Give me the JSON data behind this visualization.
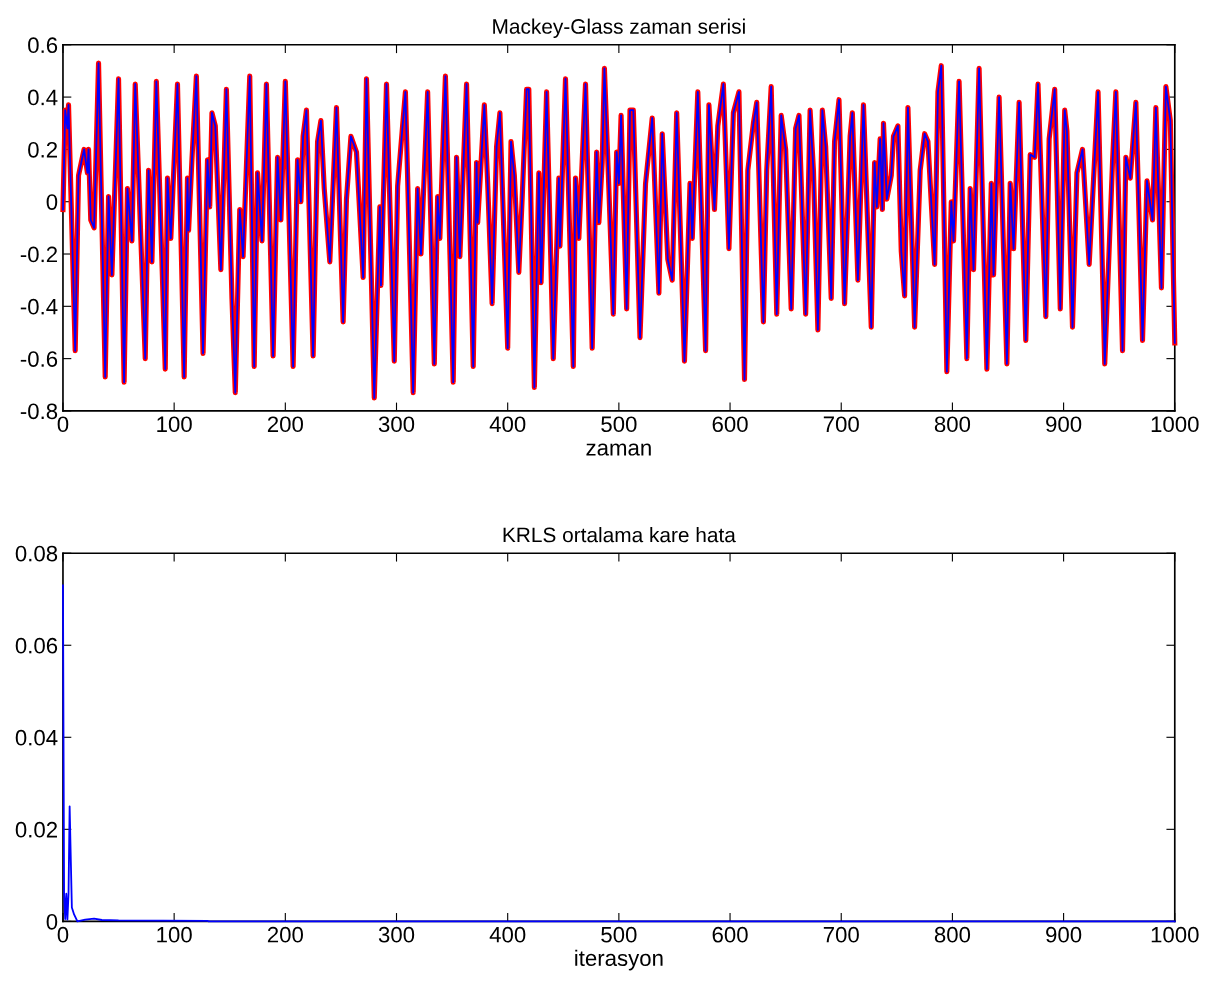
{
  "chart_data": [
    {
      "type": "line",
      "title": "Mackey-Glass zaman serisi",
      "xlabel": "zaman",
      "xlim": [
        0,
        1000
      ],
      "xticks": [
        0,
        100,
        200,
        300,
        400,
        500,
        600,
        700,
        800,
        900,
        1000
      ],
      "ylim": [
        -0.8,
        0.6
      ],
      "yticks": [
        {
          "value": -0.8,
          "label": "-0.8"
        },
        {
          "value": -0.6,
          "label": "-0.6"
        },
        {
          "value": -0.4,
          "label": "-0.4"
        },
        {
          "value": -0.2,
          "label": "-0.2"
        },
        0,
        0.2,
        0.4,
        0.6
      ],
      "marker": "none",
      "line_style": "solid",
      "x": [
        0,
        2,
        4,
        5,
        11,
        14,
        19,
        22,
        23,
        25,
        28,
        32,
        38,
        41,
        44,
        50,
        55,
        58,
        62,
        65,
        74,
        77,
        80,
        84,
        92,
        94,
        97,
        103,
        109,
        112,
        113,
        116,
        120,
        126,
        130,
        132,
        134,
        137,
        142,
        147,
        152,
        155,
        159,
        162,
        168,
        172,
        175,
        179,
        183,
        189,
        193,
        196,
        200,
        207,
        211,
        214,
        216,
        219,
        225,
        229,
        232,
        235,
        240,
        246,
        252,
        255,
        259,
        264,
        270,
        273,
        280,
        285,
        286,
        291,
        298,
        301,
        308,
        315,
        319,
        322,
        328,
        334,
        337,
        339,
        342,
        344,
        351,
        354,
        357,
        363,
        369,
        372,
        373,
        379,
        382,
        386,
        390,
        393,
        400,
        403,
        406,
        410,
        413,
        417,
        419,
        424,
        428,
        430,
        435,
        441,
        446,
        447,
        452,
        459,
        461,
        464,
        470,
        476,
        480,
        482,
        485,
        487,
        491,
        495,
        498,
        500,
        502,
        507,
        510,
        513,
        519,
        524,
        530,
        536,
        539,
        544,
        548,
        552,
        559,
        564,
        566,
        571,
        578,
        581,
        586,
        589,
        594,
        599,
        603,
        608,
        613,
        616,
        621,
        624,
        630,
        633,
        637,
        642,
        646,
        650,
        655,
        659,
        662,
        668,
        672,
        675,
        679,
        683,
        686,
        691,
        694,
        698,
        703,
        708,
        710,
        715,
        720,
        727,
        730,
        732,
        735,
        737,
        738,
        741,
        745,
        747,
        751,
        754,
        757,
        760,
        766,
        771,
        775,
        778,
        784,
        787,
        790,
        795,
        799,
        801,
        806,
        813,
        816,
        819,
        824,
        831,
        835,
        837,
        842,
        849,
        852,
        855,
        860,
        866,
        870,
        874,
        877,
        884,
        887,
        892,
        897,
        901,
        903,
        908,
        912,
        917,
        923,
        931,
        937,
        944,
        947,
        953,
        956,
        960,
        965,
        971,
        975,
        980,
        983,
        988,
        992,
        996,
        1000
      ],
      "series": [
        {
          "color": "#ff0000",
          "values": [
            -0.03,
            0.35,
            0.28,
            0.37,
            -0.57,
            0.1,
            0.2,
            0.11,
            0.2,
            -0.07,
            -0.1,
            0.53,
            -0.67,
            0.02,
            -0.28,
            0.47,
            -0.69,
            0.05,
            -0.15,
            0.45,
            -0.6,
            0.12,
            -0.23,
            0.46,
            -0.64,
            0.09,
            -0.14,
            0.45,
            -0.67,
            0.09,
            -0.11,
            0.16,
            0.48,
            -0.58,
            0.16,
            -0.02,
            0.34,
            0.29,
            -0.26,
            0.43,
            -0.37,
            -0.73,
            -0.03,
            -0.21,
            0.48,
            -0.63,
            0.11,
            -0.15,
            0.45,
            -0.59,
            0.17,
            -0.07,
            0.46,
            -0.63,
            0.16,
            0,
            0.25,
            0.35,
            -0.59,
            0.23,
            0.31,
            0.05,
            -0.23,
            0.36,
            -0.46,
            0.01,
            0.25,
            0.19,
            -0.29,
            0.47,
            -0.75,
            -0.02,
            -0.32,
            0.45,
            -0.61,
            0.06,
            0.42,
            -0.73,
            0.05,
            -0.2,
            0.42,
            -0.62,
            0.02,
            -0.14,
            0.25,
            0.48,
            -0.69,
            0.17,
            -0.21,
            0.45,
            -0.63,
            0.15,
            -0.08,
            0.37,
            0.07,
            -0.39,
            0.21,
            0.34,
            -0.56,
            0.23,
            0.1,
            -0.27,
            0.01,
            0.43,
            0.43,
            -0.71,
            0.11,
            -0.31,
            0.42,
            -0.6,
            0.09,
            -0.17,
            0.47,
            -0.63,
            0.09,
            -0.14,
            0.45,
            -0.56,
            0.19,
            -0.08,
            0.15,
            0.51,
            0.05,
            -0.43,
            0.19,
            0.07,
            0.33,
            -0.41,
            0.35,
            0.35,
            -0.52,
            0.07,
            0.32,
            -0.35,
            0.26,
            -0.22,
            -0.3,
            0.34,
            -0.61,
            0.07,
            -0.14,
            0.42,
            -0.57,
            0.37,
            -0.03,
            0.29,
            0.45,
            -0.18,
            0.34,
            0.42,
            -0.68,
            0.12,
            0.3,
            0.38,
            -0.46,
            0.12,
            0.44,
            -0.43,
            0.33,
            0.2,
            -0.41,
            0.28,
            0.33,
            -0.43,
            0.35,
            0.12,
            -0.49,
            0.35,
            0.21,
            -0.37,
            0.23,
            0.39,
            -0.39,
            0.25,
            0.34,
            -0.3,
            0.37,
            -0.48,
            0.15,
            -0.02,
            0.24,
            -0.03,
            0.3,
            0.01,
            0.1,
            0.25,
            0.29,
            -0.19,
            -0.36,
            0.36,
            -0.48,
            0.12,
            0.26,
            0.23,
            -0.24,
            0.42,
            0.52,
            -0.65,
            0,
            -0.15,
            0.46,
            -0.6,
            0.05,
            -0.26,
            0.51,
            -0.64,
            0.07,
            -0.28,
            0.4,
            -0.62,
            0.07,
            -0.18,
            0.38,
            -0.53,
            0.18,
            0.17,
            0.45,
            -0.44,
            0.24,
            0.43,
            -0.41,
            0.35,
            0.27,
            -0.48,
            0.11,
            0.2,
            -0.24,
            0.42,
            -0.62,
            0.15,
            0.42,
            -0.57,
            0.17,
            0.09,
            0.38,
            -0.53,
            0.08,
            -0.07,
            0.36,
            -0.33,
            0.44,
            0.31,
            -0.54
          ]
        },
        {
          "color": "#0000ff",
          "values": [
            -0.03,
            0.35,
            0.28,
            0.37,
            -0.57,
            0.1,
            0.2,
            0.11,
            0.2,
            -0.07,
            -0.1,
            0.53,
            -0.67,
            0.02,
            -0.28,
            0.47,
            -0.69,
            0.05,
            -0.15,
            0.45,
            -0.6,
            0.12,
            -0.23,
            0.46,
            -0.64,
            0.09,
            -0.14,
            0.45,
            -0.67,
            0.09,
            -0.11,
            0.16,
            0.48,
            -0.58,
            0.16,
            -0.02,
            0.34,
            0.29,
            -0.26,
            0.43,
            -0.37,
            -0.73,
            -0.03,
            -0.21,
            0.48,
            -0.63,
            0.11,
            -0.15,
            0.45,
            -0.59,
            0.17,
            -0.07,
            0.46,
            -0.63,
            0.16,
            0,
            0.25,
            0.35,
            -0.59,
            0.23,
            0.31,
            0.05,
            -0.23,
            0.36,
            -0.46,
            0.01,
            0.25,
            0.19,
            -0.29,
            0.47,
            -0.75,
            -0.02,
            -0.32,
            0.45,
            -0.61,
            0.06,
            0.42,
            -0.73,
            0.05,
            -0.2,
            0.42,
            -0.62,
            0.02,
            -0.14,
            0.25,
            0.48,
            -0.69,
            0.17,
            -0.21,
            0.45,
            -0.63,
            0.15,
            -0.08,
            0.37,
            0.07,
            -0.39,
            0.21,
            0.34,
            -0.56,
            0.23,
            0.1,
            -0.27,
            0.01,
            0.43,
            0.43,
            -0.71,
            0.11,
            -0.31,
            0.42,
            -0.6,
            0.09,
            -0.17,
            0.47,
            -0.63,
            0.09,
            -0.14,
            0.45,
            -0.56,
            0.19,
            -0.08,
            0.15,
            0.51,
            0.05,
            -0.43,
            0.19,
            0.07,
            0.33,
            -0.41,
            0.35,
            0.35,
            -0.52,
            0.07,
            0.32,
            -0.35,
            0.26,
            -0.22,
            -0.3,
            0.34,
            -0.61,
            0.07,
            -0.14,
            0.42,
            -0.57,
            0.37,
            -0.03,
            0.29,
            0.45,
            -0.18,
            0.34,
            0.42,
            -0.68,
            0.12,
            0.3,
            0.38,
            -0.46,
            0.12,
            0.44,
            -0.43,
            0.33,
            0.2,
            -0.41,
            0.28,
            0.33,
            -0.43,
            0.35,
            0.12,
            -0.49,
            0.35,
            0.21,
            -0.37,
            0.23,
            0.39,
            -0.39,
            0.25,
            0.34,
            -0.3,
            0.37,
            -0.48,
            0.15,
            -0.02,
            0.24,
            -0.03,
            0.3,
            0.01,
            0.1,
            0.25,
            0.29,
            -0.19,
            -0.36,
            0.36,
            -0.48,
            0.12,
            0.26,
            0.23,
            -0.24,
            0.42,
            0.52,
            -0.65,
            0,
            -0.15,
            0.46,
            -0.6,
            0.05,
            -0.26,
            0.51,
            -0.64,
            0.07,
            -0.28,
            0.4,
            -0.62,
            0.07,
            -0.18,
            0.38,
            -0.53,
            0.18,
            0.17,
            0.45,
            -0.44,
            0.24,
            0.43,
            -0.41,
            0.35,
            0.27,
            -0.48,
            0.11,
            0.2,
            -0.24,
            0.42,
            -0.62,
            0.15,
            0.42,
            -0.57,
            0.17,
            0.09,
            0.38,
            -0.53,
            0.08,
            -0.07,
            0.36,
            -0.33,
            0.44,
            0.31,
            -0.54
          ]
        }
      ]
    },
    {
      "type": "line",
      "title": "KRLS ortalama kare hata",
      "xlabel": "iterasyon",
      "xlim": [
        0,
        1000
      ],
      "xticks": [
        0,
        100,
        200,
        300,
        400,
        500,
        600,
        700,
        800,
        900,
        1000
      ],
      "ylim": [
        0,
        0.08
      ],
      "yticks": [
        0,
        0.02,
        0.04,
        0.06,
        0.08
      ],
      "marker": "none",
      "line_style": "solid",
      "x": [
        0,
        1,
        2,
        3,
        4,
        5,
        6,
        8,
        10,
        13,
        20,
        28,
        35,
        50,
        130,
        131,
        1000
      ],
      "series": [
        {
          "color": "#0000ff",
          "values": [
            0.073,
            0.006,
            0.0005,
            0.006,
            0.0004,
            0.006,
            0.025,
            0.003,
            0.0015,
            0,
            0.0004,
            0.0006,
            0.0003,
            0.0002,
            0.0001,
            0,
            0
          ]
        }
      ]
    }
  ]
}
